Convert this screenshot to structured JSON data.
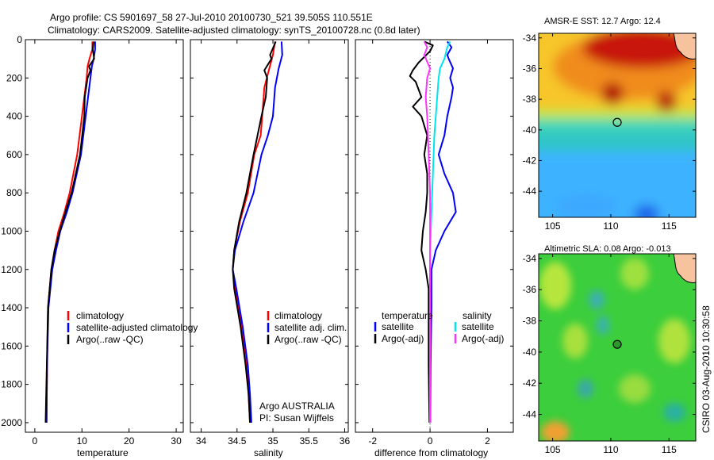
{
  "header": {
    "title_line1": "Argo profile: CS 5901697_58 27-Jul-2010 20100730_521 39.505S 110.551E",
    "title_line2": "Climatology: CARS2009. Satellite-adjusted climatology: synTS_20100728.nc (0.8d later)"
  },
  "colors": {
    "climatology": "#ff0000",
    "satellite": "#0000ff",
    "argo": "#000000",
    "sat_salinity": "#00e5ee",
    "argo_salinity": "#ff33ff"
  },
  "chart_data": [
    {
      "type": "line",
      "name": "temperature-profile",
      "xlabel": "temperature",
      "xlim": [
        -2,
        31.5
      ],
      "ylim": [
        2050,
        0
      ],
      "xticks": [
        "0",
        "10",
        "20",
        "30"
      ],
      "xtick_values": [
        0,
        10,
        20,
        30
      ],
      "yticks": [
        "0",
        "200",
        "400",
        "600",
        "800",
        "1000",
        "1200",
        "1400",
        "1600",
        "1800",
        "2000"
      ],
      "ytick_values": [
        0,
        200,
        400,
        600,
        800,
        1000,
        1200,
        1400,
        1600,
        1800,
        2000
      ],
      "legend": [
        "climatology",
        "satellite-adjusted climatology",
        "Argo(..raw -QC)"
      ],
      "series": [
        {
          "name": "climatology",
          "color": "#ff0000",
          "x": [
            12.2,
            12.2,
            11.6,
            11.2,
            11.0,
            10.0,
            9.0,
            7.4,
            6.3,
            5.0,
            4.2,
            3.5,
            2.8,
            2.6,
            2.5
          ],
          "y": [
            10,
            50,
            100,
            140,
            200,
            400,
            600,
            800,
            900,
            1000,
            1100,
            1200,
            1400,
            1700,
            2000
          ]
        },
        {
          "name": "satellite",
          "color": "#0000ff",
          "x": [
            12.8,
            12.8,
            12.5,
            12.1,
            11.8,
            10.8,
            9.8,
            8.0,
            6.8,
            5.4,
            4.5,
            3.7,
            2.9,
            2.6,
            2.5
          ],
          "y": [
            10,
            50,
            100,
            140,
            200,
            400,
            600,
            800,
            900,
            1000,
            1100,
            1200,
            1400,
            1700,
            2000
          ]
        },
        {
          "name": "argo",
          "color": "#000000",
          "x": [
            12.5,
            12.3,
            12.6,
            11.5,
            11.8,
            11.2,
            10.6,
            10.5,
            9.6,
            7.8,
            6.5,
            5.3,
            4.2,
            3.5,
            2.8,
            2.3
          ],
          "y": [
            10,
            50,
            100,
            140,
            160,
            200,
            300,
            400,
            600,
            800,
            900,
            1000,
            1100,
            1200,
            1400,
            2000
          ]
        }
      ]
    },
    {
      "type": "line",
      "name": "salinity-profile",
      "xlabel": "salinity",
      "xlim": [
        33.85,
        36.05
      ],
      "ylim": [
        2050,
        0
      ],
      "xticks": [
        "34",
        "34.5",
        "35",
        "35.5",
        "36"
      ],
      "xtick_values": [
        34,
        34.5,
        35,
        35.5,
        36
      ],
      "legend": [
        "climatology",
        "satellite adj. clim.",
        "Argo(..raw -QC)"
      ],
      "annotations": [
        "Argo AUSTRALIA",
        "PI: Susan Wijffels"
      ],
      "series": [
        {
          "name": "climatology",
          "color": "#ff0000",
          "x": [
            35.03,
            35.0,
            34.95,
            34.88,
            34.85,
            34.83,
            34.74,
            34.65,
            34.54,
            34.46,
            34.44,
            34.48,
            34.56,
            34.63,
            34.66,
            34.68
          ],
          "y": [
            10,
            80,
            150,
            250,
            400,
            500,
            600,
            800,
            950,
            1100,
            1200,
            1300,
            1500,
            1700,
            1850,
            2000
          ]
        },
        {
          "name": "satellite",
          "color": "#0000ff",
          "x": [
            35.12,
            35.13,
            35.08,
            35.03,
            35.0,
            34.93,
            34.84,
            34.73,
            34.59,
            34.47,
            34.44,
            34.49,
            34.58,
            34.65,
            34.68,
            34.7
          ],
          "y": [
            10,
            80,
            150,
            250,
            400,
            500,
            600,
            800,
            950,
            1100,
            1200,
            1300,
            1500,
            1700,
            1850,
            2000
          ]
        },
        {
          "name": "argo",
          "color": "#000000",
          "x": [
            35.04,
            34.96,
            34.98,
            34.88,
            34.92,
            34.9,
            34.84,
            34.73,
            34.63,
            34.53,
            34.46,
            34.44,
            34.46,
            34.55,
            34.62,
            34.66,
            34.68
          ],
          "y": [
            10,
            80,
            100,
            160,
            200,
            300,
            400,
            600,
            800,
            950,
            1100,
            1200,
            1300,
            1500,
            1700,
            1850,
            2000
          ]
        }
      ]
    },
    {
      "type": "line",
      "name": "difference-profile",
      "xlabel": "difference from climatology",
      "xlim": [
        -2.6,
        2.9
      ],
      "ylim": [
        2050,
        0
      ],
      "xticks": [
        "-2",
        "0",
        "2"
      ],
      "xtick_values": [
        -2,
        0,
        2
      ],
      "legend_headers": [
        "temperature",
        "salinity"
      ],
      "legend": [
        "satellite",
        "Argo(-adj)",
        "satellite",
        "Argo(-adj)"
      ],
      "series": [
        {
          "name": "temperature satellite",
          "color": "#0000ff",
          "x": [
            0.6,
            0.75,
            0.6,
            0.65,
            0.8,
            0.7,
            0.8,
            0.75,
            0.6,
            0.5,
            0.3,
            0.5,
            0.8,
            0.9,
            0.5,
            0.2,
            0.05,
            0.05,
            0.02,
            0.01
          ],
          "y": [
            10,
            40,
            80,
            100,
            150,
            200,
            250,
            300,
            400,
            500,
            600,
            700,
            800,
            900,
            1000,
            1100,
            1200,
            1400,
            1700,
            2000
          ]
        },
        {
          "name": "temperature Argo",
          "color": "#000000",
          "x": [
            -0.2,
            0.1,
            0.0,
            -0.4,
            -0.6,
            -0.7,
            -0.5,
            -0.3,
            -0.6,
            -0.3,
            -0.1,
            -0.2,
            -0.1,
            -0.1,
            -0.15,
            -0.25,
            -0.3,
            -0.15,
            -0.05,
            -0.05,
            -0.02
          ],
          "y": [
            10,
            30,
            60,
            120,
            160,
            190,
            220,
            300,
            350,
            400,
            500,
            600,
            700,
            800,
            900,
            1000,
            1100,
            1200,
            1300,
            1700,
            2000
          ]
        },
        {
          "name": "salinity satellite",
          "color": "#00e5ee",
          "x": [
            0.7,
            0.6,
            0.5,
            0.35,
            0.3,
            0.25,
            0.2,
            0.15,
            0.1,
            0.05,
            0.0,
            0.0,
            0.0,
            0.0
          ],
          "y": [
            10,
            40,
            100,
            150,
            200,
            300,
            400,
            500,
            700,
            900,
            1100,
            1300,
            1700,
            2000
          ]
        },
        {
          "name": "salinity Argo",
          "color": "#ff33ff",
          "x": [
            -0.2,
            -0.1,
            -0.2,
            0.0,
            -0.1,
            -0.15,
            -0.1,
            -0.05,
            0.0,
            0.0,
            0.0
          ],
          "y": [
            10,
            40,
            80,
            150,
            200,
            300,
            400,
            600,
            800,
            1200,
            2000
          ]
        }
      ]
    }
  ],
  "map_sst": {
    "title": "AMSR-E SST: 12.7 Argo: 12.4",
    "xticks": [
      "105",
      "110",
      "115"
    ],
    "xtick_values": [
      105,
      110,
      115
    ],
    "yticks": [
      "-34",
      "-36",
      "-38",
      "-40",
      "-42",
      "-44"
    ],
    "ytick_values": [
      -34,
      -36,
      -38,
      -40,
      -42,
      -44
    ],
    "lon_range": [
      103.8,
      117.3
    ],
    "lat_range": [
      -45.7,
      -33.7
    ],
    "float_position": {
      "lon": 110.551,
      "lat": -39.505
    }
  },
  "map_sla": {
    "title": "Altimetric SLA: 0.08 Argo: -0.013",
    "xticks": [
      "105",
      "110",
      "115"
    ],
    "xtick_values": [
      105,
      110,
      115
    ],
    "yticks": [
      "-34",
      "-36",
      "-38",
      "-40",
      "-42",
      "-44"
    ],
    "ytick_values": [
      -34,
      -36,
      -38,
      -40,
      -42,
      -44
    ],
    "lon_range": [
      103.8,
      117.3
    ],
    "lat_range": [
      -45.7,
      -33.7
    ],
    "float_position": {
      "lon": 110.551,
      "lat": -39.505
    }
  },
  "footer": {
    "credit": "CSIRO 03-Aug-2010 10:30:58"
  }
}
